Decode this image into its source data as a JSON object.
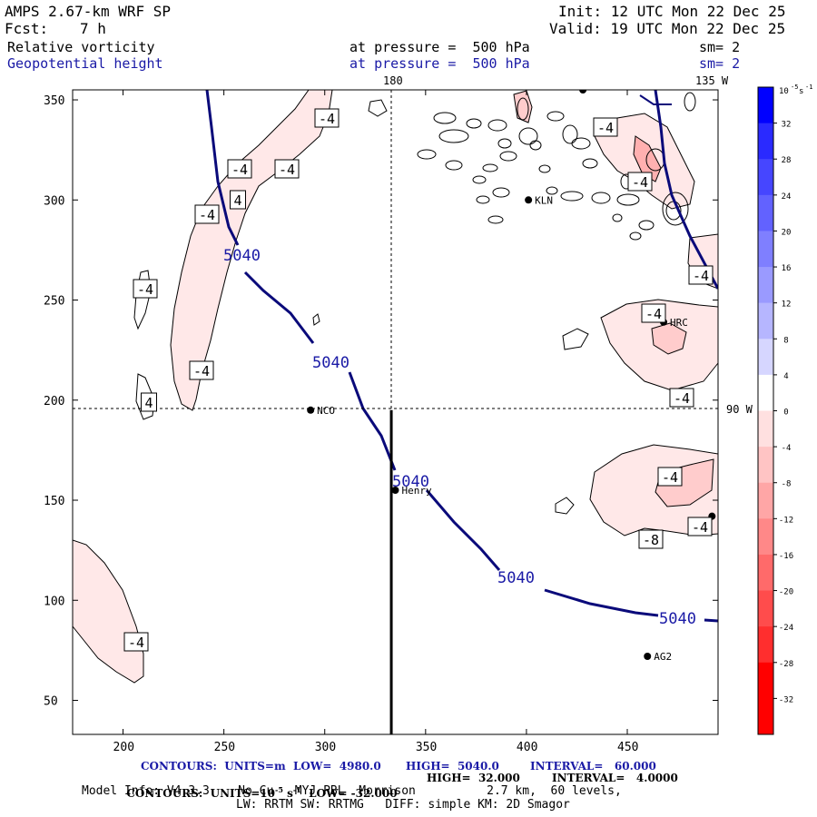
{
  "header": {
    "model": "AMPS 2.67-km WRF SP",
    "init": "Init: 12 UTC Mon 22 Dec 25",
    "fcst_label": "Fcst:",
    "fcst_value": "7 h",
    "valid": "Valid: 19 UTC Mon 22 Dec 25",
    "field1": "Relative vorticity",
    "field1_pressure": "at pressure =  500 hPa",
    "field1_sm": "sm= 2",
    "field2": "Geopotential height",
    "field2_pressure": "at pressure =  500 hPa",
    "field2_sm": "sm= 2"
  },
  "chart_data": {
    "type": "contour-map",
    "fields": [
      {
        "name": "Relative vorticity",
        "units": "10^-5 s^-1",
        "interval": 4,
        "low": -32,
        "high": 32
      },
      {
        "name": "Geopotential height",
        "units": "m",
        "interval": 60,
        "low": 4980,
        "high": 5040
      }
    ],
    "x_ticks": [
      200,
      250,
      300,
      350,
      400,
      450
    ],
    "y_ticks": [
      50,
      100,
      150,
      200,
      250,
      300,
      350
    ],
    "xlim": [
      175,
      495
    ],
    "ylim": [
      33,
      355
    ],
    "longitude_labels": {
      "top_180": "180",
      "top_135w": "135 W",
      "right_90w": "90 W"
    },
    "height_contour_labels": [
      "5040",
      "5040",
      "5040",
      "5040",
      "5040"
    ],
    "vorticity_labels": [
      "-4",
      "-4",
      "-4",
      "-4",
      "-4",
      "4",
      "-4",
      "4",
      "-4",
      "-4",
      "-4",
      "-4",
      "-4",
      "-4",
      "-8",
      "-4",
      "-4"
    ],
    "stations": [
      {
        "name": "KLN",
        "x": 401,
        "y": 300
      },
      {
        "name": "HRC",
        "x": 468,
        "y": 239
      },
      {
        "name": "NCO",
        "x": 293,
        "y": 195
      },
      {
        "name": "Henry",
        "x": 335,
        "y": 155
      },
      {
        "name": "AG2",
        "x": 460,
        "y": 72
      },
      {
        "name": "",
        "x": 428,
        "y": 355
      },
      {
        "name": "",
        "x": 492,
        "y": 142
      }
    ],
    "cross_section_line": {
      "x": 333,
      "y_from": 33,
      "y_to": 195
    },
    "colorbar": {
      "unit_label": "10^-5 s^-1",
      "ticks": [
        "32",
        "28",
        "24",
        "20",
        "16",
        "12",
        "8",
        "4",
        "0",
        "-4",
        "-8",
        "-12",
        "-16",
        "-20",
        "-24",
        "-28",
        "-32"
      ],
      "colors": [
        "#0000ff",
        "#2a2aff",
        "#4646ff",
        "#6262ff",
        "#7f7fff",
        "#9a9aff",
        "#b6b6ff",
        "#d6d6ff",
        "#ffffff",
        "#ffe0e0",
        "#ffc4c4",
        "#ffa6a6",
        "#ff8888",
        "#ff6a6a",
        "#ff4c4c",
        "#ff2e2e",
        "#ff0000"
      ]
    },
    "colors": {
      "height_contour": "#0a0a7a",
      "vort_fill_light": "#ffe8e8",
      "vort_fill_mid": "#ffcccc"
    }
  },
  "footer": {
    "line1_a": "CONTOURS:  UNITS=m  LOW=  4980.0",
    "line1_b": "HIGH=  5040.0",
    "line1_c": "INTERVAL=   60.000",
    "line2_a": "CONTOURS:  UNITS=10",
    "line2_sup": "-5",
    "line2_b": " s",
    "line2_sup2": "-1",
    "line2_c": "  LOW= -32.000",
    "line2_d": "HIGH=  32.000",
    "line2_e": "INTERVAL=   4.0000",
    "model_info": "Model Info: V4.3.3    No Cu   MYJ PBL  Morrison          2.7 km,  60 levels,",
    "model_info2": "LW: RRTM SW: RRTMG   DIFF: simple KM: 2D Smagor"
  }
}
